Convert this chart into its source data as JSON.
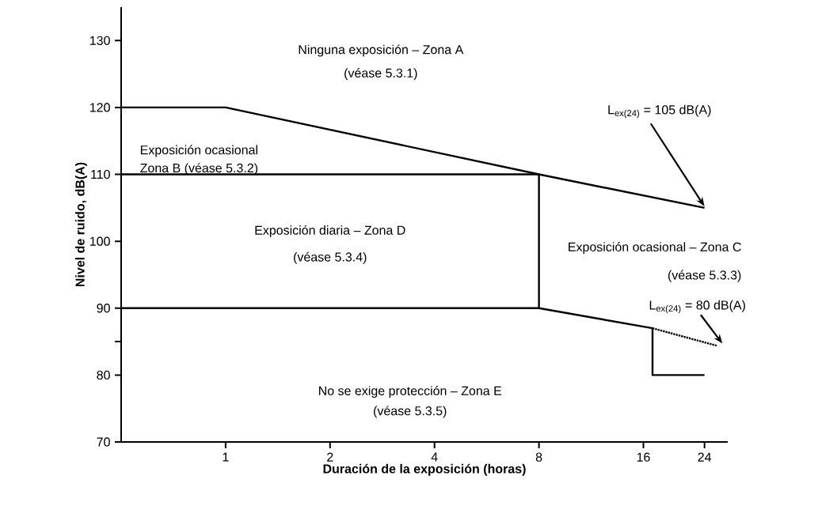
{
  "chart_data": {
    "type": "line",
    "xlabel": "Duración de la exposición (horas)",
    "ylabel": "Nivel de ruido, dB(A)",
    "log": "x",
    "xlim": [
      0.5,
      28
    ],
    "ylim": [
      70,
      135
    ],
    "xticks": [
      1,
      2,
      4,
      8,
      16,
      24
    ],
    "yticks": [
      70,
      80,
      {
        "value": 85,
        "label": null
      },
      90,
      100,
      110,
      120,
      130
    ],
    "grid": false,
    "marker": "none",
    "series": [
      {
        "color": "#000000",
        "x": [
          0.5,
          1,
          8,
          24
        ],
        "values": [
          120,
          120,
          110,
          105
        ]
      },
      {
        "color": "#000000",
        "x": [
          0.5,
          8
        ],
        "values": [
          110,
          110
        ]
      },
      {
        "color": "#000000",
        "x": [
          8,
          8
        ],
        "values": [
          90,
          110
        ]
      },
      {
        "color": "#000000",
        "x": [
          0.5,
          8,
          17,
          17,
          24
        ],
        "values": [
          90,
          90,
          87,
          80,
          80
        ]
      },
      {
        "color": "#000000",
        "x": [
          17,
          26
        ],
        "values": [
          87,
          84.4
        ],
        "line_style": "dotted"
      }
    ],
    "annotations": [
      "Ninguna exposición – Zona A",
      "(véase 5.3.1)",
      "Exposición ocasional",
      "Zona B  (véase 5.3.2)",
      "Exposición diaria – Zona D",
      "(véase 5.3.4)",
      "Exposición ocasional – Zona C",
      "(véase 5.3.3)",
      "No se exige protección – Zona E",
      "(véase 5.3.5)",
      {
        "text": "L$_{ex(24)}$ = 105 dB(A)",
        "x": 24,
        "y": 105
      },
      {
        "text": "L$_{ex(24)}$ = 80 dB(A)",
        "x": 26,
        "y": 84.4
      }
    ]
  }
}
